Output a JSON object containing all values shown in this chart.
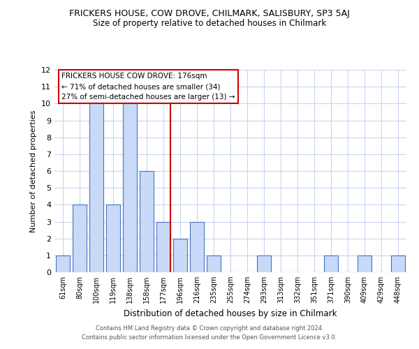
{
  "title": "FRICKERS HOUSE, COW DROVE, CHILMARK, SALISBURY, SP3 5AJ",
  "subtitle": "Size of property relative to detached houses in Chilmark",
  "xlabel": "Distribution of detached houses by size in Chilmark",
  "ylabel": "Number of detached properties",
  "bar_labels": [
    "61sqm",
    "80sqm",
    "100sqm",
    "119sqm",
    "138sqm",
    "158sqm",
    "177sqm",
    "196sqm",
    "216sqm",
    "235sqm",
    "255sqm",
    "274sqm",
    "293sqm",
    "313sqm",
    "332sqm",
    "351sqm",
    "371sqm",
    "390sqm",
    "409sqm",
    "429sqm",
    "448sqm"
  ],
  "bar_values": [
    1,
    4,
    10,
    4,
    10,
    6,
    3,
    2,
    3,
    1,
    0,
    0,
    1,
    0,
    0,
    0,
    1,
    0,
    1,
    0,
    1
  ],
  "highlight_index": 6,
  "bar_color": "#c9daf8",
  "bar_edge_color": "#4472c4",
  "highlight_line_color": "#cc0000",
  "annotation_box_edge": "#cc0000",
  "annotation_title": "FRICKERS HOUSE COW DROVE: 176sqm",
  "annotation_line1": "← 71% of detached houses are smaller (34)",
  "annotation_line2": "27% of semi-detached houses are larger (13) →",
  "ylim": [
    0,
    12
  ],
  "yticks": [
    0,
    1,
    2,
    3,
    4,
    5,
    6,
    7,
    8,
    9,
    10,
    11,
    12
  ],
  "footer_line1": "Contains HM Land Registry data © Crown copyright and database right 2024.",
  "footer_line2": "Contains public sector information licensed under the Open Government Licence v3.0.",
  "background_color": "#ffffff",
  "grid_color": "#c8d4f0"
}
